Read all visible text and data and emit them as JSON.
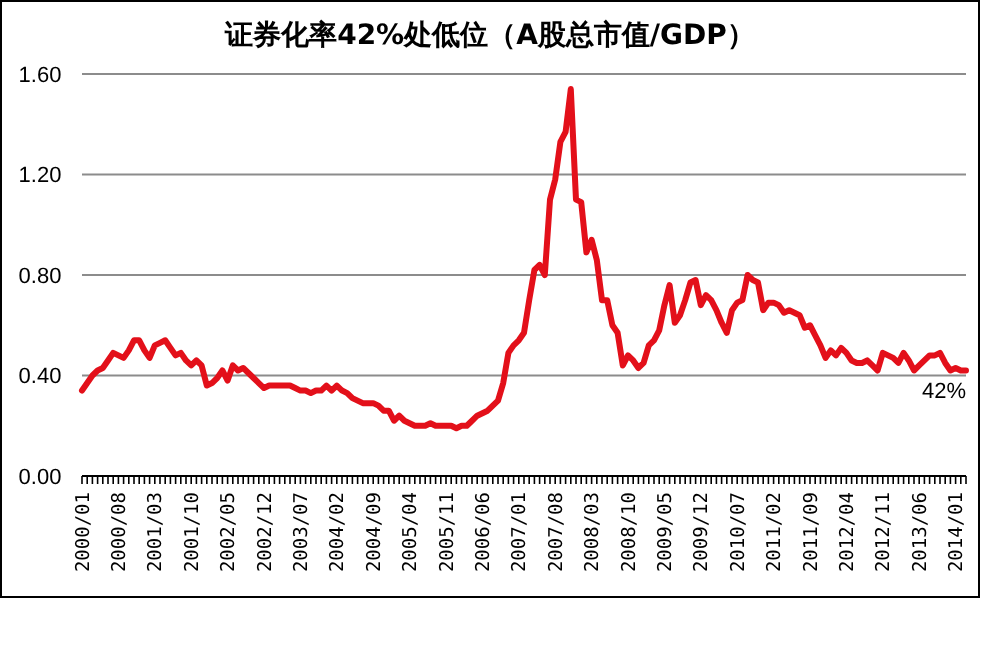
{
  "chart_data": {
    "type": "line",
    "title": "证券化率42%处低位（A股总市值/GDP）",
    "categories": [
      "2000/01",
      null,
      null,
      null,
      null,
      null,
      null,
      "2000/08",
      null,
      null,
      null,
      null,
      null,
      null,
      "2001/03",
      null,
      null,
      null,
      null,
      null,
      null,
      "2001/10",
      null,
      null,
      null,
      null,
      null,
      null,
      "2002/05",
      null,
      null,
      null,
      null,
      null,
      null,
      "2002/12",
      null,
      null,
      null,
      null,
      null,
      null,
      "2003/07",
      null,
      null,
      null,
      null,
      null,
      null,
      "2004/02",
      null,
      null,
      null,
      null,
      null,
      null,
      "2004/09",
      null,
      null,
      null,
      null,
      null,
      null,
      "2005/04",
      null,
      null,
      null,
      null,
      null,
      null,
      "2005/11",
      null,
      null,
      null,
      null,
      null,
      null,
      "2006/06",
      null,
      null,
      null,
      null,
      null,
      null,
      "2007/01",
      null,
      null,
      null,
      null,
      null,
      null,
      "2007/08",
      null,
      null,
      null,
      null,
      null,
      null,
      "2008/03",
      null,
      null,
      null,
      null,
      null,
      null,
      "2008/10",
      null,
      null,
      null,
      null,
      null,
      null,
      "2009/05",
      null,
      null,
      null,
      null,
      null,
      null,
      "2009/12",
      null,
      null,
      null,
      null,
      null,
      null,
      "2010/07",
      null,
      null,
      null,
      null,
      null,
      null,
      "2011/02",
      null,
      null,
      null,
      null,
      null,
      null,
      "2011/09",
      null,
      null,
      null,
      null,
      null,
      null,
      "2012/04",
      null,
      null,
      null,
      null,
      null,
      null,
      "2012/11",
      null,
      null,
      null,
      null,
      null,
      null,
      "2013/06",
      null,
      null,
      null,
      null,
      null,
      null,
      "2014/01",
      null,
      null
    ],
    "series": [
      {
        "color": "#e3101a",
        "values": [
          0.34,
          0.37,
          0.4,
          0.42,
          0.43,
          0.46,
          0.49,
          0.48,
          0.47,
          0.5,
          0.54,
          0.54,
          0.5,
          0.47,
          0.52,
          0.53,
          0.54,
          0.51,
          0.48,
          0.49,
          0.46,
          0.44,
          0.46,
          0.44,
          0.36,
          0.37,
          0.39,
          0.42,
          0.38,
          0.44,
          0.42,
          0.43,
          0.41,
          0.39,
          0.37,
          0.35,
          0.36,
          0.36,
          0.36,
          0.36,
          0.36,
          0.35,
          0.34,
          0.34,
          0.33,
          0.34,
          0.34,
          0.36,
          0.34,
          0.36,
          0.34,
          0.33,
          0.31,
          0.3,
          0.29,
          0.29,
          0.29,
          0.28,
          0.26,
          0.26,
          0.22,
          0.24,
          0.22,
          0.21,
          0.2,
          0.2,
          0.2,
          0.21,
          0.2,
          0.2,
          0.2,
          0.2,
          0.19,
          0.2,
          0.2,
          0.22,
          0.24,
          0.25,
          0.26,
          0.28,
          0.3,
          0.37,
          0.49,
          0.52,
          0.54,
          0.57,
          0.7,
          0.82,
          0.84,
          0.8,
          1.1,
          1.18,
          1.33,
          1.37,
          1.54,
          1.1,
          1.09,
          0.89,
          0.94,
          0.86,
          0.7,
          0.7,
          0.6,
          0.57,
          0.44,
          0.48,
          0.46,
          0.43,
          0.45,
          0.52,
          0.54,
          0.58,
          0.68,
          0.76,
          0.61,
          0.64,
          0.7,
          0.77,
          0.78,
          0.68,
          0.72,
          0.7,
          0.66,
          0.61,
          0.57,
          0.66,
          0.69,
          0.7,
          0.8,
          0.78,
          0.77,
          0.66,
          0.69,
          0.69,
          0.68,
          0.65,
          0.66,
          0.65,
          0.64,
          0.59,
          0.6,
          0.56,
          0.52,
          0.47,
          0.5,
          0.48,
          0.51,
          0.49,
          0.46,
          0.45,
          0.45,
          0.46,
          0.44,
          0.42,
          0.49,
          0.48,
          0.47,
          0.45,
          0.49,
          0.46,
          0.42,
          0.44,
          0.46,
          0.48,
          0.48,
          0.49,
          0.45,
          0.42,
          0.43,
          0.42,
          0.42
        ]
      }
    ],
    "ylim": [
      0,
      1.6
    ],
    "yticks": [
      {
        "value": 0,
        "label": "0.00"
      },
      {
        "value": 0.4,
        "label": "0.40"
      },
      {
        "value": 0.8,
        "label": "0.80"
      },
      {
        "value": 1.2,
        "label": "1.20"
      },
      {
        "value": 1.6,
        "label": "1.60"
      }
    ],
    "grid": "y",
    "line_style": "solid",
    "annotations": [
      {
        "text": "42%",
        "y": 0.42
      }
    ]
  }
}
